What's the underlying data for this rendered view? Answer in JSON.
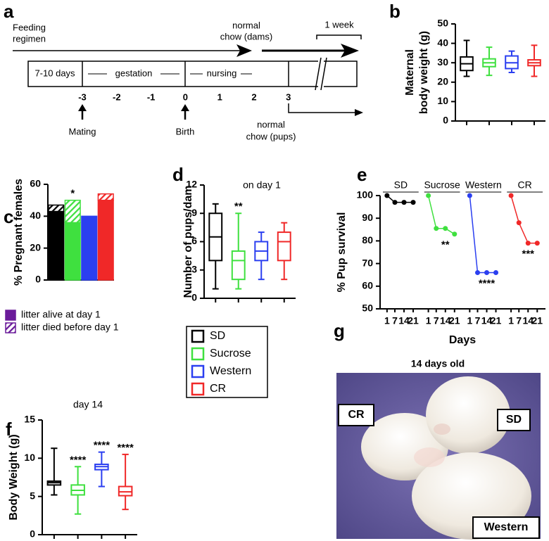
{
  "legend": {
    "items": [
      {
        "name": "SD",
        "color": "#000000"
      },
      {
        "name": "Sucrose",
        "color": "#3fe03f"
      },
      {
        "name": "Western",
        "color": "#2b3ff0"
      },
      {
        "name": "CR",
        "color": "#f02828"
      }
    ]
  },
  "timeline": {
    "panel": "a",
    "regimen": [
      "Feeding",
      "regimen"
    ],
    "dams": [
      "normal",
      "chow (dams)"
    ],
    "scale": "1 week",
    "segments": [
      "7-10 days",
      "gestation",
      "nursing"
    ],
    "days": [
      "-3",
      "-2",
      "-1",
      "0",
      "1",
      "2",
      "3"
    ],
    "events": [
      "Mating",
      "Birth"
    ],
    "pups": [
      "normal",
      "chow (pups)"
    ]
  },
  "chart_data": [
    {
      "panel": "b",
      "type": "box",
      "ylabel": [
        "Maternal",
        "body weight (g)"
      ],
      "ylim": [
        0,
        50
      ],
      "yticks": [
        0,
        10,
        20,
        30,
        40,
        50
      ],
      "boxes": [
        {
          "min": 23,
          "q1": 26,
          "median": 29.5,
          "q3": 33,
          "max": 41.5
        },
        {
          "min": 23.5,
          "q1": 28,
          "median": 30,
          "q3": 32,
          "max": 38
        },
        {
          "min": 25,
          "q1": 27,
          "median": 30,
          "q3": 33.5,
          "max": 36
        },
        {
          "min": 23,
          "q1": 28.5,
          "median": 30,
          "q3": 31.5,
          "max": 39
        }
      ]
    },
    {
      "panel": "c",
      "type": "stacked_bar",
      "ylabel": "% Pregnant females",
      "ylim": [
        0,
        60
      ],
      "yticks": [
        0,
        20,
        40,
        60
      ],
      "series": [
        {
          "name": "litter alive at day 1",
          "color": "#6a1b9a",
          "values": [
            43,
            36,
            40,
            50
          ]
        },
        {
          "name": "litter died before day 1",
          "color": "#6a1b9a",
          "hatch": true,
          "values": [
            4,
            14,
            0,
            4
          ]
        }
      ],
      "annotations": [
        null,
        "*",
        null,
        null
      ]
    },
    {
      "panel": "d",
      "type": "box",
      "ylabel": "Number of pups/dam",
      "subtitle": "on day 1",
      "ylim": [
        0,
        12
      ],
      "yticks": [
        0,
        3,
        6,
        9,
        12
      ],
      "boxes": [
        {
          "min": 1,
          "q1": 4,
          "median": 6.5,
          "q3": 9,
          "max": 10
        },
        {
          "min": 1,
          "q1": 2,
          "median": 4,
          "q3": 5,
          "max": 9,
          "annotation": "**"
        },
        {
          "min": 2,
          "q1": 4,
          "median": 5,
          "q3": 6,
          "max": 7
        },
        {
          "min": 2,
          "q1": 4,
          "median": 6,
          "q3": 7,
          "max": 8
        }
      ]
    },
    {
      "panel": "e",
      "type": "line",
      "ylabel": "% Pup survival",
      "xlabel": "Days",
      "ylim": [
        50,
        100
      ],
      "yticks": [
        50,
        60,
        70,
        80,
        90,
        100
      ],
      "xlim": [
        0,
        23
      ],
      "x": [
        1,
        7,
        14,
        21
      ],
      "series": [
        {
          "name": "SD",
          "color": "#000000",
          "values": [
            100,
            97,
            97,
            97
          ]
        },
        {
          "name": "Sucrose",
          "color": "#3fe03f",
          "values": [
            100,
            85.5,
            85.5,
            83
          ],
          "annotation": "**"
        },
        {
          "name": "Western",
          "color": "#2b3ff0",
          "values": [
            100,
            66,
            66,
            66
          ],
          "annotation": "****"
        },
        {
          "name": "CR",
          "color": "#f02828",
          "values": [
            100,
            88,
            79,
            79
          ],
          "annotation": "***"
        }
      ]
    },
    {
      "panel": "f",
      "type": "box",
      "ylabel": "Body Weight (g)",
      "subtitle": "day 14",
      "ylim": [
        0,
        15
      ],
      "yticks": [
        0,
        5,
        10,
        15
      ],
      "boxes": [
        {
          "min": 5.2,
          "q1": 6.5,
          "median": 6.8,
          "q3": 7.0,
          "max": 11.3
        },
        {
          "min": 2.7,
          "q1": 5.2,
          "median": 5.8,
          "q3": 6.5,
          "max": 8.9,
          "annotation": "****"
        },
        {
          "min": 6.3,
          "q1": 8.5,
          "median": 8.9,
          "q3": 9.2,
          "max": 10.8,
          "annotation": "****"
        },
        {
          "min": 3.3,
          "q1": 5.1,
          "median": 5.6,
          "q3": 6.3,
          "max": 10.5,
          "annotation": "****"
        }
      ]
    }
  ],
  "photo": {
    "panel": "g",
    "title": "14 days old",
    "labels": [
      "CR",
      "SD",
      "Western"
    ]
  }
}
